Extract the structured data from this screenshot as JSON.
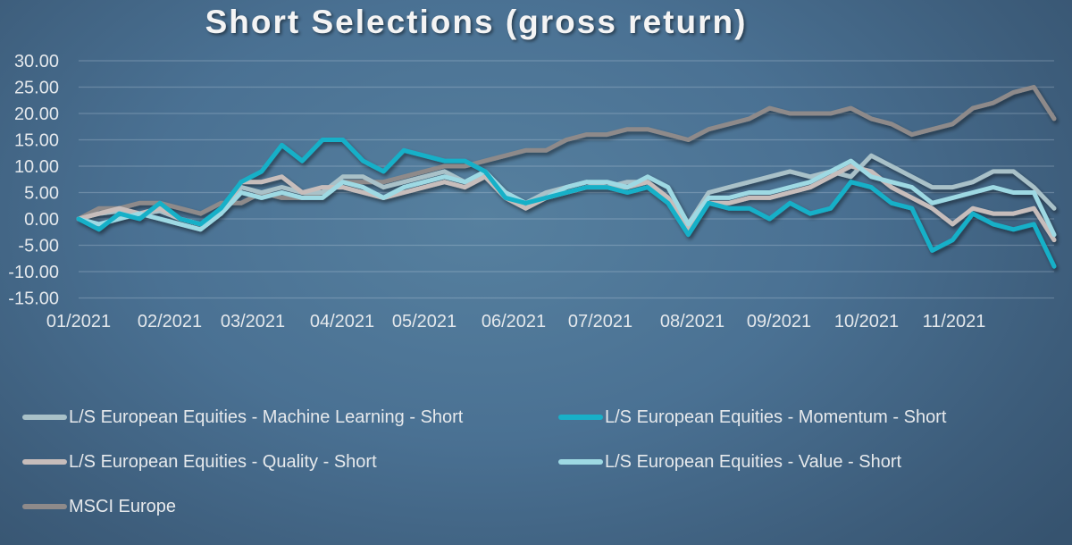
{
  "title": "Short Selections (gross return)",
  "chart_data": {
    "type": "line",
    "title": "Short Selections (gross return)",
    "xlabel": "",
    "ylabel": "",
    "ylim": [
      -15,
      30
    ],
    "yticks": [
      "30.00",
      "25.00",
      "20.00",
      "15.00",
      "10.00",
      "5.00",
      "0.00",
      "-5.00",
      "-10.00",
      "-15.00"
    ],
    "x_tick_labels": [
      "01/2021",
      "02/2021",
      "03/2021",
      "04/2021",
      "05/2021",
      "06/2021",
      "07/2021",
      "08/2021",
      "09/2021",
      "10/2021",
      "11/2021"
    ],
    "grid": true,
    "legend_position": "bottom",
    "x": [
      0,
      0.25,
      0.5,
      0.75,
      1.0,
      1.25,
      1.5,
      1.75,
      2.0,
      2.25,
      2.5,
      2.75,
      3.0,
      3.25,
      3.5,
      3.75,
      4.0,
      4.25,
      4.5,
      4.75,
      5.0,
      5.25,
      5.5,
      5.75,
      6.0,
      6.25,
      6.5,
      6.75,
      7.0,
      7.25,
      7.5,
      7.75,
      8.0,
      8.25,
      8.5,
      8.75,
      9.0,
      9.25,
      9.5,
      9.75,
      10.0,
      10.25,
      10.5,
      10.75,
      11.0,
      11.25,
      11.5,
      11.75,
      12.0
    ],
    "series": [
      {
        "name": "L/S European Equities - Machine Learning - Short",
        "color": "#a9c1c8",
        "values": [
          0,
          1,
          1.5,
          1,
          1.5,
          0,
          -1,
          1,
          6,
          5,
          6,
          5,
          5,
          8,
          8,
          6,
          7,
          8,
          9,
          7,
          8,
          5,
          3,
          5,
          6,
          7,
          6,
          7,
          7,
          4,
          -1,
          5,
          6,
          7,
          8,
          9,
          8,
          9,
          8,
          12,
          10,
          8,
          6,
          6,
          7,
          9,
          9,
          6,
          2
        ]
      },
      {
        "name": "L/S European Equities - Momentum - Short",
        "color": "#18b0c8",
        "values": [
          0,
          -2,
          1,
          0,
          3,
          0,
          -1,
          2,
          7,
          9,
          14,
          11,
          15,
          15,
          11,
          9,
          13,
          12,
          11,
          11,
          9,
          4,
          3,
          4,
          5,
          6,
          6,
          5,
          6,
          3,
          -3,
          3,
          2,
          2,
          0,
          3,
          1,
          2,
          7,
          6,
          3,
          2,
          -6,
          -4,
          1,
          -1,
          -2,
          -1,
          -9
        ]
      },
      {
        "name": "L/S European Equities - Quality - Short",
        "color": "#c7bdbb",
        "values": [
          0,
          1,
          2,
          1,
          2,
          0,
          -1,
          1,
          7,
          7,
          8,
          5,
          6,
          6,
          5,
          4,
          5,
          6,
          7,
          6,
          8,
          4,
          2,
          4,
          5,
          6,
          6,
          6,
          7,
          4,
          -2,
          3,
          3,
          4,
          4,
          5,
          6,
          8,
          10,
          9,
          6,
          4,
          2,
          -1,
          2,
          1,
          1,
          2,
          -4
        ]
      },
      {
        "name": "L/S European Equities - Value - Short",
        "color": "#9ed9e3",
        "values": [
          0,
          -1,
          0,
          1,
          0,
          -1,
          -2,
          1,
          5,
          4,
          5,
          4,
          4,
          7,
          6,
          4,
          6,
          7,
          8,
          7,
          9,
          5,
          3,
          4,
          6,
          7,
          7,
          6,
          8,
          6,
          -1,
          4,
          4,
          5,
          5,
          6,
          7,
          9,
          11,
          8,
          7,
          6,
          3,
          4,
          5,
          6,
          5,
          5,
          -3
        ]
      },
      {
        "name": "MSCI Europe",
        "color": "#8e8a8a",
        "values": [
          0,
          2,
          2,
          3,
          3,
          2,
          1,
          3,
          3,
          5,
          4,
          4,
          5,
          7,
          7,
          7,
          8,
          9,
          10,
          10,
          11,
          12,
          13,
          13,
          15,
          16,
          16,
          17,
          17,
          16,
          15,
          17,
          18,
          19,
          21,
          20,
          20,
          20,
          21,
          19,
          18,
          16,
          17,
          18,
          21,
          22,
          24,
          25,
          19
        ]
      }
    ]
  },
  "legend": [
    {
      "label": "L/S European Equities - Machine Learning - Short",
      "color": "#a9c1c8"
    },
    {
      "label": "L/S European Equities - Momentum - Short",
      "color": "#18b0c8"
    },
    {
      "label": "L/S European Equities - Quality - Short",
      "color": "#c7bdbb"
    },
    {
      "label": "L/S European Equities - Value - Short",
      "color": "#9ed9e3"
    },
    {
      "label": "MSCI Europe",
      "color": "#8e8a8a"
    }
  ]
}
